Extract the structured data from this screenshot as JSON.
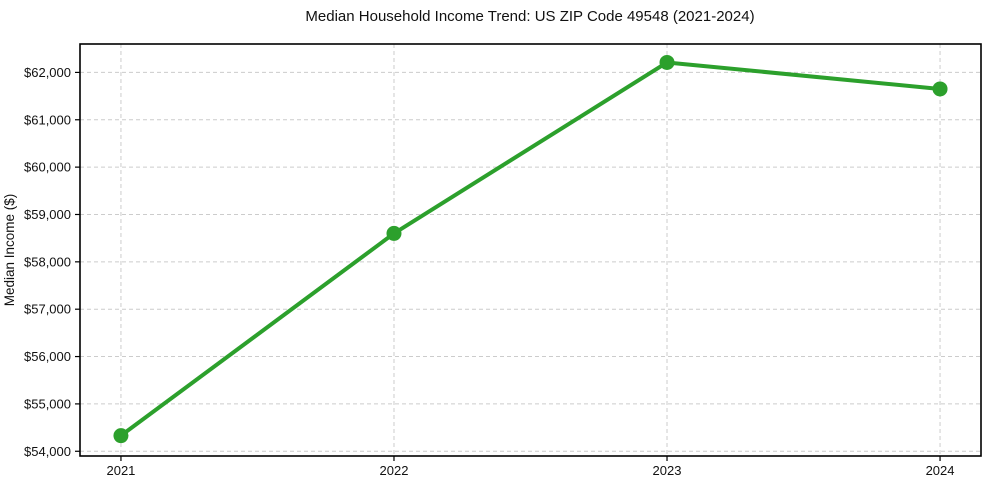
{
  "chart_data": {
    "type": "line",
    "title": "Median Household Income Trend: US ZIP Code 49548 (2021-2024)",
    "xlabel": "",
    "ylabel": "Median Income ($)",
    "x": [
      2021,
      2022,
      2023,
      2024
    ],
    "series": [
      {
        "name": "Median Household Income",
        "values": [
          54330,
          58600,
          62210,
          61650
        ]
      }
    ],
    "xtick_values": [
      2021,
      2022,
      2023,
      2024
    ],
    "xtick_labels": [
      "2021",
      "2022",
      "2023",
      "2024"
    ],
    "ytick_values": [
      54000,
      55000,
      56000,
      57000,
      58000,
      59000,
      60000,
      61000,
      62000
    ],
    "ytick_labels": [
      "$54,000",
      "$55,000",
      "$56,000",
      "$57,000",
      "$58,000",
      "$59,000",
      "$60,000",
      "$61,000",
      "$62,000"
    ],
    "xlim": [
      2020.85,
      2024.15
    ],
    "ylim": [
      53900,
      62600
    ],
    "grid": "dashed-both-axes",
    "legend": "none",
    "colors": {
      "line": "#2ca02c",
      "marker": "#2ca02c",
      "grid": "#cccccc",
      "axis": "#000000",
      "text": "#111111",
      "background": "#ffffff"
    }
  }
}
